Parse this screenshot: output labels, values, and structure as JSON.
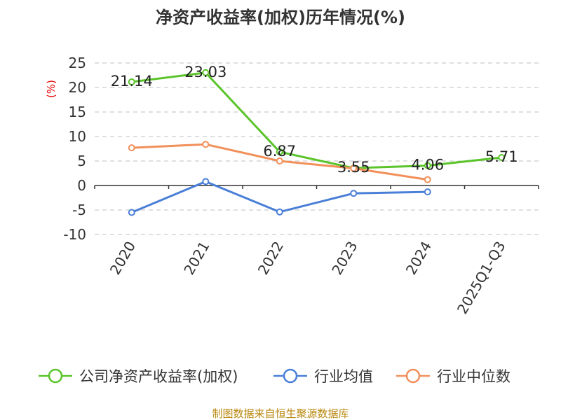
{
  "chart_data": {
    "type": "line",
    "title": "净资产收益率(加权)历年情况(%)",
    "unit_label": "(%)",
    "categories": [
      "2020",
      "2021",
      "2022",
      "2023",
      "2024",
      "2025Q1-Q3"
    ],
    "ylim": [
      -10,
      25
    ],
    "yticks": [
      25,
      20,
      15,
      10,
      5,
      0,
      -5,
      -10
    ],
    "grid": true,
    "legend_position": "bottom",
    "series": [
      {
        "name": "公司净资产收益率(加权)",
        "color": "#5ac42a",
        "values": [
          21.14,
          23.03,
          6.87,
          3.55,
          4.06,
          5.71
        ],
        "labels": [
          "21.14",
          "23.03",
          "6.87",
          "3.55",
          "4.06",
          "5.71"
        ]
      },
      {
        "name": "行业均值",
        "color": "#4a7fd8",
        "values": [
          -5.5,
          0.8,
          -5.4,
          -1.6,
          -1.3,
          null
        ]
      },
      {
        "name": "行业中位数",
        "color": "#f2905a",
        "values": [
          7.7,
          8.4,
          5.0,
          3.5,
          1.2,
          null
        ]
      }
    ]
  },
  "source_text": "制图数据来自恒生聚源数据库"
}
